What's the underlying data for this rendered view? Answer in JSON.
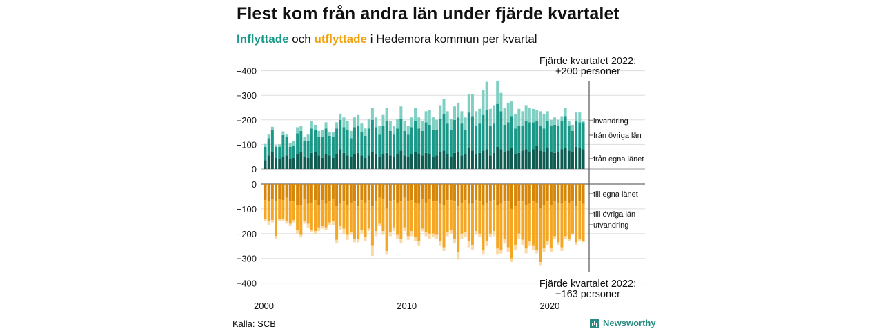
{
  "title": "Flest kom från andra län under fjärde kvartalet",
  "subtitle": {
    "in_word": "Inflyttade",
    "joiner": "och",
    "out_word": "utflyttade",
    "rest": "i Hedemora kommun per kvartal"
  },
  "source": "Källa: SCB",
  "brand": "Newsworthy",
  "colors": {
    "egna_in": "#0e5c52",
    "ovriga_in": "#1a9888",
    "invandring": "#7fcfc3",
    "egna_out": "#d6870a",
    "ovriga_out": "#f5a623",
    "utvandring": "#fad9a5"
  },
  "chart_data": {
    "type": "bar",
    "stacked": true,
    "x_start": "2000 Q1",
    "x_ticks": [
      "2000",
      "2010",
      "2020"
    ],
    "y_ticks_top": [
      "+400",
      "+300",
      "+200",
      "+100",
      "0"
    ],
    "y_ticks_bottom": [
      "0",
      "−100",
      "−200",
      "−300",
      "−400"
    ],
    "ylim_top": [
      0,
      400
    ],
    "ylim_bottom": [
      -400,
      0
    ],
    "series_labels": {
      "invandring": "invandring",
      "fran_ovriga": "från övriga län",
      "fran_egna": "från egna länet",
      "till_egna": "till egna länet",
      "till_ovriga": "till övriga län",
      "utvandring": "utvandring"
    },
    "annotation_top": [
      "Fjärde kvartalet 2022:",
      "+200 personer"
    ],
    "annotation_bottom": [
      "Fjärde kvartalet 2022:",
      "−163 personer"
    ],
    "in_egna": [
      35,
      55,
      70,
      45,
      40,
      48,
      55,
      40,
      45,
      60,
      70,
      50,
      45,
      65,
      70,
      55,
      45,
      60,
      55,
      45,
      60,
      80,
      65,
      55,
      50,
      60,
      65,
      55,
      45,
      55,
      70,
      60,
      50,
      60,
      65,
      55,
      50,
      60,
      75,
      55,
      50,
      60,
      70,
      60,
      55,
      65,
      60,
      50,
      55,
      70,
      75,
      60,
      50,
      65,
      70,
      55,
      60,
      85,
      75,
      60,
      65,
      75,
      80,
      55,
      65,
      90,
      80,
      70,
      75,
      85,
      60,
      65,
      75,
      80,
      70,
      80,
      95,
      75,
      70,
      85,
      70,
      65,
      70,
      80,
      85,
      75,
      70,
      90,
      85,
      80
    ],
    "in_ovriga": [
      55,
      70,
      90,
      45,
      50,
      90,
      75,
      50,
      50,
      85,
      85,
      65,
      70,
      100,
      90,
      75,
      85,
      105,
      80,
      85,
      105,
      120,
      105,
      105,
      75,
      110,
      110,
      95,
      90,
      110,
      130,
      110,
      90,
      115,
      130,
      100,
      90,
      105,
      130,
      100,
      90,
      110,
      125,
      105,
      100,
      125,
      120,
      110,
      105,
      135,
      150,
      125,
      110,
      135,
      140,
      130,
      100,
      145,
      140,
      115,
      120,
      145,
      160,
      120,
      120,
      175,
      155,
      110,
      115,
      130,
      105,
      110,
      100,
      115,
      120,
      110,
      100,
      100,
      95,
      110,
      105,
      115,
      105,
      115,
      130,
      100,
      85,
      105,
      105,
      110
    ],
    "in_inv": [
      12,
      15,
      12,
      8,
      10,
      15,
      10,
      15,
      20,
      25,
      20,
      15,
      25,
      30,
      20,
      25,
      30,
      25,
      15,
      20,
      25,
      25,
      40,
      35,
      30,
      40,
      45,
      35,
      30,
      40,
      50,
      40,
      35,
      45,
      55,
      40,
      35,
      40,
      50,
      40,
      35,
      40,
      55,
      45,
      40,
      45,
      60,
      50,
      40,
      55,
      60,
      50,
      45,
      55,
      60,
      50,
      50,
      75,
      90,
      60,
      60,
      100,
      115,
      70,
      75,
      95,
      75,
      70,
      80,
      60,
      60,
      70,
      60,
      65,
      60,
      55,
      45,
      60,
      60,
      40,
      25,
      30,
      25,
      20,
      35,
      20,
      25,
      35,
      40,
      5
    ],
    "out_egna": [
      65,
      70,
      60,
      70,
      60,
      65,
      55,
      70,
      70,
      85,
      85,
      60,
      80,
      75,
      65,
      85,
      65,
      80,
      70,
      60,
      90,
      80,
      70,
      85,
      75,
      70,
      90,
      65,
      75,
      65,
      90,
      70,
      55,
      60,
      95,
      70,
      65,
      75,
      70,
      55,
      70,
      65,
      75,
      80,
      60,
      75,
      60,
      70,
      70,
      80,
      85,
      65,
      65,
      70,
      90,
      75,
      65,
      80,
      80,
      65,
      70,
      85,
      75,
      70,
      65,
      85,
      80,
      70,
      70,
      100,
      90,
      70,
      70,
      85,
      80,
      70,
      75,
      95,
      85,
      70,
      85,
      70,
      75,
      80,
      70,
      75,
      70,
      90,
      70,
      80
    ],
    "out_ovriga": [
      75,
      80,
      85,
      140,
      80,
      75,
      95,
      90,
      75,
      100,
      120,
      90,
      80,
      110,
      125,
      90,
      105,
      95,
      85,
      90,
      135,
      90,
      110,
      120,
      120,
      150,
      130,
      120,
      140,
      115,
      160,
      120,
      105,
      130,
      175,
      125,
      110,
      130,
      150,
      120,
      140,
      125,
      140,
      150,
      120,
      120,
      140,
      130,
      135,
      150,
      170,
      130,
      120,
      150,
      185,
      125,
      130,
      150,
      165,
      125,
      130,
      180,
      155,
      130,
      125,
      175,
      185,
      150,
      185,
      200,
      155,
      130,
      155,
      175,
      150,
      180,
      190,
      220,
      175,
      160,
      175,
      140,
      160,
      175,
      140,
      145,
      130,
      145,
      150,
      150
    ],
    "out_utv": [
      10,
      15,
      10,
      10,
      10,
      8,
      10,
      10,
      10,
      15,
      10,
      10,
      15,
      10,
      10,
      15,
      10,
      10,
      10,
      15,
      15,
      15,
      20,
      20,
      10,
      15,
      15,
      15,
      15,
      10,
      40,
      20,
      10,
      15,
      15,
      15,
      15,
      15,
      20,
      15,
      15,
      20,
      15,
      20,
      10,
      15,
      20,
      15,
      15,
      20,
      15,
      15,
      15,
      20,
      30,
      20,
      20,
      25,
      20,
      15,
      15,
      20,
      20,
      15,
      20,
      25,
      15,
      20,
      20,
      15,
      20,
      20,
      20,
      20,
      20,
      15,
      15,
      15,
      15,
      15,
      15,
      10,
      10,
      15,
      10,
      10,
      5,
      10,
      10,
      5
    ]
  }
}
